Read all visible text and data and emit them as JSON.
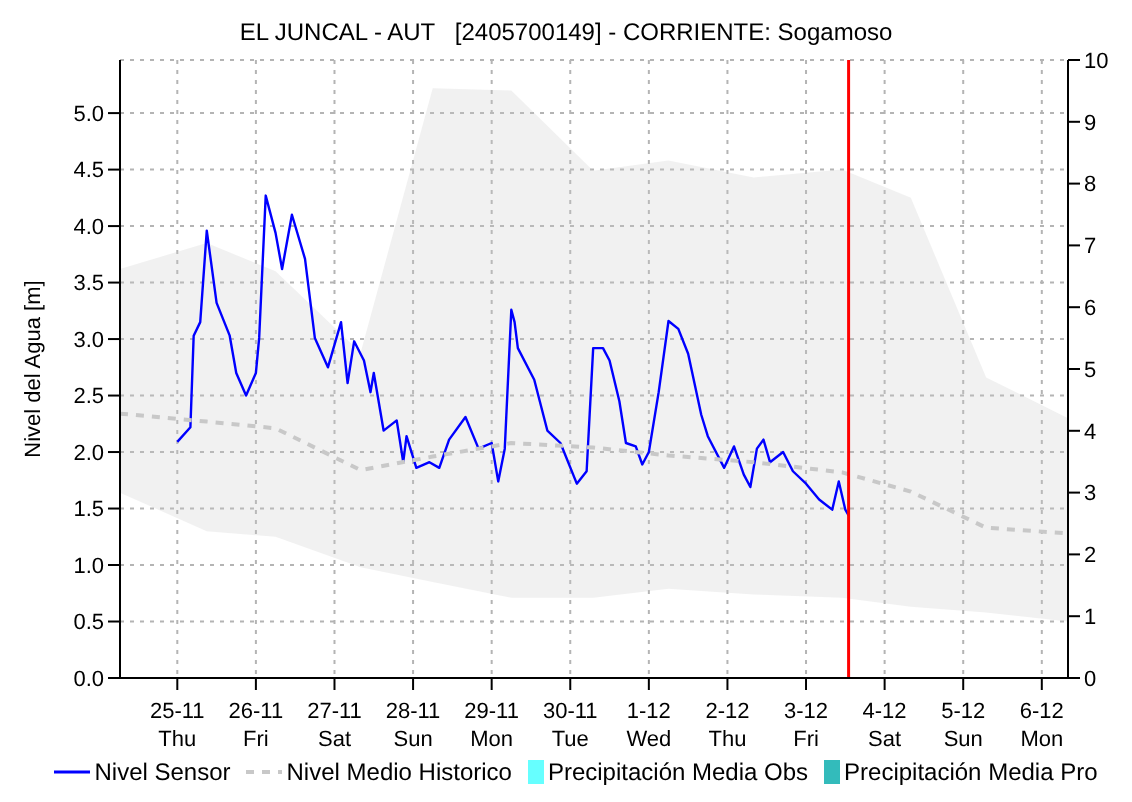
{
  "chart_data": {
    "type": "line",
    "title": "EL JUNCAL - AUT   [2405700149] - CORRIENTE: Sogamoso",
    "ylabel": "Nivel del Agua [m]",
    "xlim": [
      "--11-24T06:30",
      "--12-06T08:00"
    ],
    "xticks": [
      {
        "value": "--11-25",
        "label": "25-11\nThu"
      },
      {
        "value": "--11-26",
        "label": "26-11\nFri"
      },
      {
        "value": "--11-27",
        "label": "27-11\nSat"
      },
      {
        "value": "--11-28",
        "label": "28-11\nSun"
      },
      {
        "value": "--11-29",
        "label": "29-11\nMon"
      },
      {
        "value": "--11-30",
        "label": "30-11\nTue"
      },
      {
        "value": "--12-01",
        "label": "1-12\nWed"
      },
      {
        "value": "--12-02",
        "label": "2-12\nThu"
      },
      {
        "value": "--12-03",
        "label": "3-12\nFri"
      },
      {
        "value": "--12-04",
        "label": "4-12\nSat"
      },
      {
        "value": "--12-05",
        "label": "5-12\nSun"
      },
      {
        "value": "--12-06",
        "label": "6-12\nMon"
      }
    ],
    "ylim": [
      0,
      5.47
    ],
    "yticks": [
      {
        "value": 0,
        "label": "0.0"
      },
      {
        "value": 0.5,
        "label": "0.5"
      },
      {
        "value": 1,
        "label": "1.0"
      },
      {
        "value": 1.5,
        "label": "1.5"
      },
      {
        "value": 2,
        "label": "2.0"
      },
      {
        "value": 2.5,
        "label": "2.5"
      },
      {
        "value": 3,
        "label": "3.0"
      },
      {
        "value": 3.5,
        "label": "3.5"
      },
      {
        "value": 4,
        "label": "4.0"
      },
      {
        "value": 4.5,
        "label": "4.5"
      },
      {
        "value": 5,
        "label": "5.0"
      }
    ],
    "y2lim": [
      0,
      10
    ],
    "y2ticks": [
      0,
      1,
      2,
      3,
      4,
      5,
      6,
      7,
      8,
      9,
      10
    ],
    "grid": true,
    "legend": "bottom",
    "ref_lines": [
      {
        "axis": "x",
        "value": "--12-03T13:00",
        "label": null,
        "color": "#ff0000"
      }
    ],
    "series": [
      {
        "name": "Nivel Sensor",
        "color": "#0000ff",
        "line_style": "solid",
        "x": [
          "--11-25T00:00",
          "--11-25T04:00",
          "--11-25T05:00",
          "--11-25T07:00",
          "--11-25T09:00",
          "--11-25T12:00",
          "--11-25T16:00",
          "--11-25T18:00",
          "--11-25T21:00",
          "--11-26T00:00",
          "--11-26T01:00",
          "--11-26T03:00",
          "--11-26T06:00",
          "--11-26T08:00",
          "--11-26T11:00",
          "--11-26T15:00",
          "--11-26T18:00",
          "--11-26T22:00",
          "--11-27T02:00",
          "--11-27T04:00",
          "--11-27T06:00",
          "--11-27T09:00",
          "--11-27T11:00",
          "--11-27T12:00",
          "--11-27T15:00",
          "--11-27T19:00",
          "--11-27T21:00",
          "--11-27T22:00",
          "--11-28T01:00",
          "--11-28T05:00",
          "--11-28T08:00",
          "--11-28T11:00",
          "--11-28T16:00",
          "--11-28T20:00",
          "--11-29T00:00",
          "--11-29T02:00",
          "--11-29T04:00",
          "--11-29T06:00",
          "--11-29T07:00",
          "--11-29T08:00",
          "--11-29T13:00",
          "--11-29T17:00",
          "--11-29T21:00",
          "--11-30T02:00",
          "--11-30T05:00",
          "--11-30T07:00",
          "--11-30T10:00",
          "--11-30T12:00",
          "--11-30T15:00",
          "--11-30T17:00",
          "--11-30T20:00",
          "--11-30T22:00",
          "--12-01T00:00",
          "--12-01T03:00",
          "--12-01T06:00",
          "--12-01T09:00",
          "--12-01T12:00",
          "--12-01T16:00",
          "--12-01T18:00",
          "--12-01T23:00",
          "--12-02T02:00",
          "--12-02T05:00",
          "--12-02T07:00",
          "--12-02T09:00",
          "--12-02T11:00",
          "--12-02T13:00",
          "--12-02T17:00",
          "--12-02T20:00",
          "--12-03T00:00",
          "--12-03T04:00",
          "--12-03T08:00",
          "--12-03T10:00",
          "--12-03T12:00",
          "--12-03T13:00"
        ],
        "values": [
          2.09,
          2.22,
          3.03,
          3.15,
          3.96,
          3.32,
          3.03,
          2.7,
          2.5,
          2.7,
          3.01,
          4.27,
          3.94,
          3.62,
          4.1,
          3.71,
          3.01,
          2.75,
          3.15,
          2.61,
          2.98,
          2.81,
          2.53,
          2.7,
          2.19,
          2.28,
          1.91,
          2.14,
          1.86,
          1.91,
          1.86,
          2.11,
          2.31,
          2.03,
          2.08,
          1.74,
          2.03,
          3.26,
          3.15,
          2.92,
          2.64,
          2.19,
          2.08,
          1.72,
          1.83,
          2.92,
          2.92,
          2.81,
          2.45,
          2.08,
          2.05,
          1.89,
          2.0,
          2.53,
          3.16,
          3.09,
          2.87,
          2.33,
          2.14,
          1.86,
          2.05,
          1.8,
          1.69,
          2.03,
          2.11,
          1.91,
          2.0,
          1.83,
          1.72,
          1.58,
          1.49,
          1.74,
          1.49,
          1.44
        ]
      },
      {
        "name": "Nivel Medio Historico",
        "color": "#c8c8c8",
        "line_style": "dashed",
        "x": [
          "--11-24T06:30",
          "--11-25T09:00",
          "--11-26T06:00",
          "--11-27T08:00",
          "--11-28T06:00",
          "--11-29T06:00",
          "--11-30T07:00",
          "--12-01T06:00",
          "--12-02T08:00",
          "--12-03T11:00",
          "--12-04T08:00",
          "--12-05T07:00",
          "--12-06T08:00"
        ],
        "values": [
          2.34,
          2.27,
          2.21,
          1.84,
          1.96,
          2.08,
          2.04,
          1.97,
          1.91,
          1.82,
          1.65,
          1.33,
          1.28
        ],
        "lower": [
          1.64,
          1.3,
          1.25,
          0.98,
          0.85,
          0.71,
          0.71,
          0.79,
          0.74,
          0.71,
          0.63,
          0.58,
          0.5
        ],
        "upper": [
          3.62,
          3.85,
          3.6,
          2.88,
          5.22,
          5.2,
          4.49,
          4.58,
          4.43,
          4.5,
          4.25,
          2.66,
          2.3
        ]
      },
      {
        "name": "Precipitación Media Obs",
        "type": "bar",
        "color": "#66ffff"
      },
      {
        "name": "Precipitación Media Pro",
        "type": "bar",
        "color": "#33bbbb"
      }
    ]
  }
}
